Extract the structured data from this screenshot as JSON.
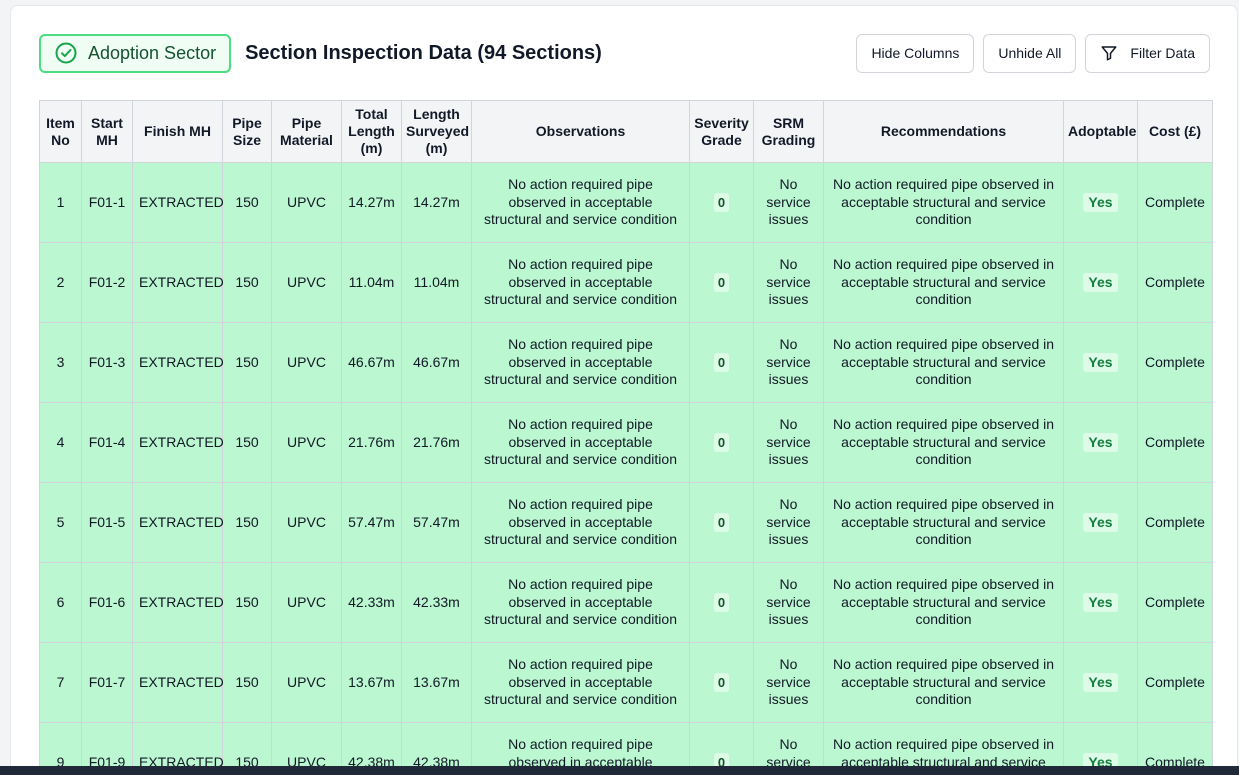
{
  "header": {
    "sector_label": "Adoption Sector",
    "sector_icon": "check-circle-icon",
    "title": "Section Inspection Data (94 Sections)",
    "hide_columns_label": "Hide Columns",
    "unhide_all_label": "Unhide All",
    "filter_label": "Filter Data",
    "filter_icon": "filter-icon"
  },
  "colors": {
    "row_green": "#bbf7d0",
    "badge_border": "#4ade80",
    "header_bg": "#f3f4f6"
  },
  "table": {
    "columns": [
      "Item No",
      "Start MH",
      "Finish MH",
      "Pipe Size",
      "Pipe Material",
      "Total Length (m)",
      "Length Surveyed (m)",
      "Observations",
      "Severity Grade",
      "SRM Grading",
      "Recommendations",
      "Adoptable",
      "Cost (£)"
    ],
    "rows": [
      {
        "item": "1",
        "start": "F01-1",
        "finish": "EXTRACTED",
        "size": "150",
        "material": "UPVC",
        "total": "14.27m",
        "surveyed": "14.27m",
        "observations": "No action required pipe observed in acceptable structural and service condition",
        "severity": "0",
        "srm": "No service issues",
        "recommendations": "No action required pipe observed in acceptable structural and service condition",
        "adoptable": "Yes",
        "cost": "Complete"
      },
      {
        "item": "2",
        "start": "F01-2",
        "finish": "EXTRACTED",
        "size": "150",
        "material": "UPVC",
        "total": "11.04m",
        "surveyed": "11.04m",
        "observations": "No action required pipe observed in acceptable structural and service condition",
        "severity": "0",
        "srm": "No service issues",
        "recommendations": "No action required pipe observed in acceptable structural and service condition",
        "adoptable": "Yes",
        "cost": "Complete"
      },
      {
        "item": "3",
        "start": "F01-3",
        "finish": "EXTRACTED",
        "size": "150",
        "material": "UPVC",
        "total": "46.67m",
        "surveyed": "46.67m",
        "observations": "No action required pipe observed in acceptable structural and service condition",
        "severity": "0",
        "srm": "No service issues",
        "recommendations": "No action required pipe observed in acceptable structural and service condition",
        "adoptable": "Yes",
        "cost": "Complete"
      },
      {
        "item": "4",
        "start": "F01-4",
        "finish": "EXTRACTED",
        "size": "150",
        "material": "UPVC",
        "total": "21.76m",
        "surveyed": "21.76m",
        "observations": "No action required pipe observed in acceptable structural and service condition",
        "severity": "0",
        "srm": "No service issues",
        "recommendations": "No action required pipe observed in acceptable structural and service condition",
        "adoptable": "Yes",
        "cost": "Complete"
      },
      {
        "item": "5",
        "start": "F01-5",
        "finish": "EXTRACTED",
        "size": "150",
        "material": "UPVC",
        "total": "57.47m",
        "surveyed": "57.47m",
        "observations": "No action required pipe observed in acceptable structural and service condition",
        "severity": "0",
        "srm": "No service issues",
        "recommendations": "No action required pipe observed in acceptable structural and service condition",
        "adoptable": "Yes",
        "cost": "Complete"
      },
      {
        "item": "6",
        "start": "F01-6",
        "finish": "EXTRACTED",
        "size": "150",
        "material": "UPVC",
        "total": "42.33m",
        "surveyed": "42.33m",
        "observations": "No action required pipe observed in acceptable structural and service condition",
        "severity": "0",
        "srm": "No service issues",
        "recommendations": "No action required pipe observed in acceptable structural and service condition",
        "adoptable": "Yes",
        "cost": "Complete"
      },
      {
        "item": "7",
        "start": "F01-7",
        "finish": "EXTRACTED",
        "size": "150",
        "material": "UPVC",
        "total": "13.67m",
        "surveyed": "13.67m",
        "observations": "No action required pipe observed in acceptable structural and service condition",
        "severity": "0",
        "srm": "No service issues",
        "recommendations": "No action required pipe observed in acceptable structural and service condition",
        "adoptable": "Yes",
        "cost": "Complete"
      },
      {
        "item": "9",
        "start": "F01-9",
        "finish": "EXTRACTED",
        "size": "150",
        "material": "UPVC",
        "total": "42.38m",
        "surveyed": "42.38m",
        "observations": "No action required pipe observed in acceptable structural and service condition",
        "severity": "0",
        "srm": "No service issues",
        "recommendations": "No action required pipe observed in acceptable structural and service condition",
        "adoptable": "Yes",
        "cost": "Complete"
      }
    ]
  }
}
